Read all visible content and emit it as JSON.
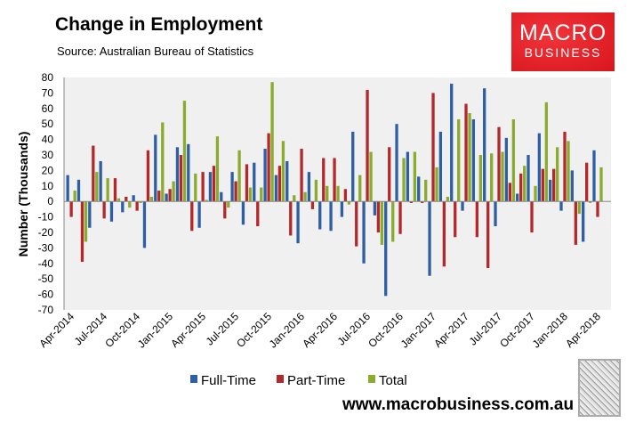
{
  "chart_data": {
    "type": "bar",
    "title": "Change in Employment",
    "subtitle": "Source: Australian Bureau of Statistics",
    "xlabel": "",
    "ylabel": "Number (Thousands)",
    "ylim": [
      -70,
      80
    ],
    "yticks": [
      80,
      70,
      60,
      50,
      40,
      30,
      20,
      10,
      0,
      -10,
      -20,
      -30,
      -40,
      -50,
      -60,
      -70
    ],
    "grid": false,
    "legend_position": "bottom",
    "categories": [
      "Apr-2014",
      "May-2014",
      "Jun-2014",
      "Jul-2014",
      "Aug-2014",
      "Sep-2014",
      "Oct-2014",
      "Nov-2014",
      "Dec-2014",
      "Jan-2015",
      "Feb-2015",
      "Mar-2015",
      "Apr-2015",
      "May-2015",
      "Jun-2015",
      "Jul-2015",
      "Aug-2015",
      "Sep-2015",
      "Oct-2015",
      "Nov-2015",
      "Dec-2015",
      "Jan-2016",
      "Feb-2016",
      "Mar-2016",
      "Apr-2016",
      "May-2016",
      "Jun-2016",
      "Jul-2016",
      "Aug-2016",
      "Sep-2016",
      "Oct-2016",
      "Nov-2016",
      "Dec-2016",
      "Jan-2017",
      "Feb-2017",
      "Mar-2017",
      "Apr-2017",
      "May-2017",
      "Jun-2017",
      "Jul-2017",
      "Aug-2017",
      "Sep-2017",
      "Oct-2017",
      "Nov-2017",
      "Dec-2017",
      "Jan-2018",
      "Feb-2018",
      "Mar-2018",
      "Apr-2018"
    ],
    "tick_labels": [
      "Apr-2014",
      "Jul-2014",
      "Oct-2014",
      "Jan-2015",
      "Apr-2015",
      "Jul-2015",
      "Oct-2015",
      "Jan-2016",
      "Apr-2016",
      "Jul-2016",
      "Oct-2016",
      "Jan-2017",
      "Apr-2017",
      "Jul-2017",
      "Oct-2017",
      "Jan-2018",
      "Apr-2018"
    ],
    "series": [
      {
        "name": "Full-Time",
        "color": "#2e5fa3",
        "values": [
          17,
          14,
          -17,
          26,
          -13,
          -7,
          4,
          -30,
          43,
          5,
          35,
          37,
          -17,
          19,
          6,
          19,
          -15,
          25,
          34,
          17,
          26,
          -27,
          19,
          -18,
          -19,
          -10,
          45,
          -40,
          -9,
          -61,
          50,
          32,
          16,
          -48,
          45,
          76,
          -6,
          53,
          73,
          -16,
          41,
          5,
          30,
          44,
          14,
          -6,
          20,
          -26,
          33
        ]
      },
      {
        "name": "Part-Time",
        "color": "#b3292b",
        "values": [
          -10,
          -39,
          36,
          -11,
          15,
          3,
          -6,
          33,
          7,
          8,
          30,
          -19,
          19,
          23,
          -11,
          13,
          24,
          -16,
          44,
          23,
          -22,
          34,
          -5,
          28,
          28,
          8,
          -29,
          72,
          -20,
          35,
          -21,
          -1,
          -1,
          70,
          -42,
          -23,
          63,
          -23,
          -43,
          48,
          12,
          18,
          -20,
          21,
          21,
          45,
          -28,
          25,
          -10
        ]
      },
      {
        "name": "Total",
        "color": "#8aab2e",
        "values": [
          7,
          -26,
          19,
          15,
          2,
          -4,
          -1,
          3,
          51,
          13,
          65,
          18,
          1,
          42,
          -4,
          33,
          9,
          9,
          77,
          39,
          4,
          6,
          14,
          10,
          10,
          -2,
          17,
          32,
          -28,
          -26,
          28,
          32,
          14,
          22,
          3,
          53,
          57,
          30,
          31,
          32,
          53,
          23,
          10,
          64,
          35,
          39,
          -8,
          -1,
          22
        ]
      }
    ]
  },
  "logo": {
    "line1": "MACRO",
    "line2": "BUSINESS"
  },
  "website": "www.macrobusiness.com.au"
}
